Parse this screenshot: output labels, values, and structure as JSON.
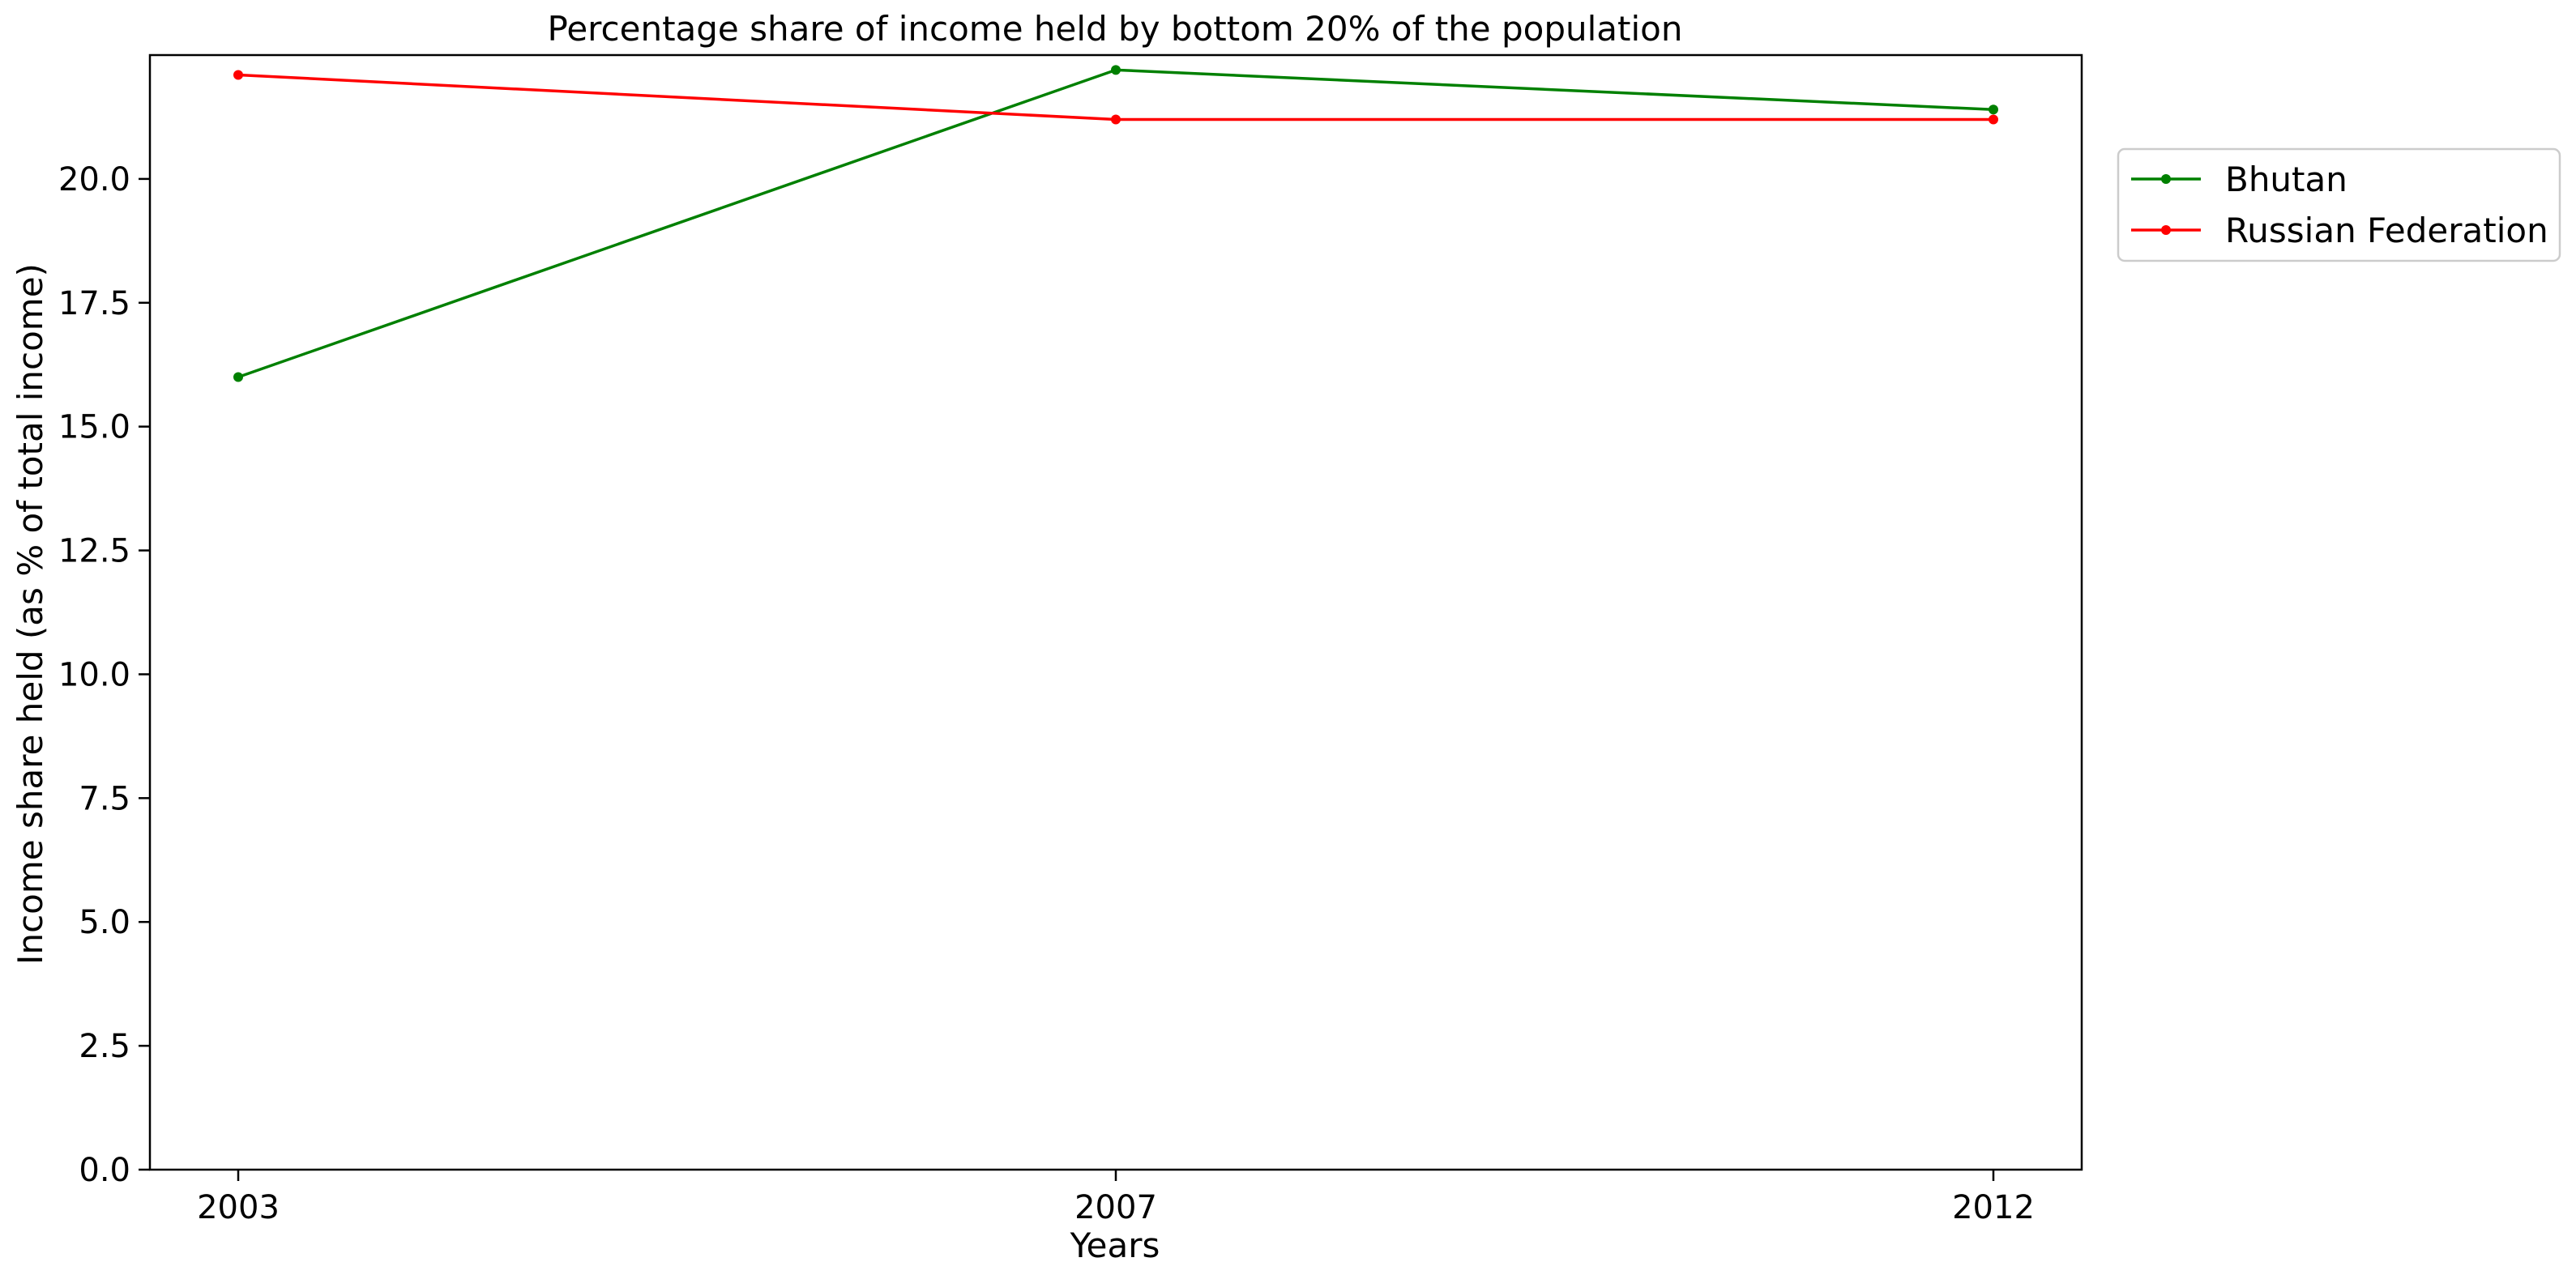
{
  "chart_data": {
    "type": "line",
    "title": "Percentage share of income held by bottom 20% of the population",
    "xlabel": "Years",
    "ylabel": "Income share held (as % of total income)",
    "categories": [
      "2003",
      "2007",
      "2012"
    ],
    "ylim": [
      0,
      22.5
    ],
    "yticks": [
      "0.0",
      "2.5",
      "5.0",
      "7.5",
      "10.0",
      "12.5",
      "15.0",
      "17.5",
      "20.0"
    ],
    "grid": false,
    "legend_position": "upper right, outside plot",
    "series": [
      {
        "name": "Bhutan",
        "color": "#008000",
        "values": [
          16.0,
          22.2,
          21.4
        ]
      },
      {
        "name": "Russian Federation",
        "color": "#ff0000",
        "values": [
          22.1,
          21.2,
          21.2
        ]
      }
    ]
  }
}
